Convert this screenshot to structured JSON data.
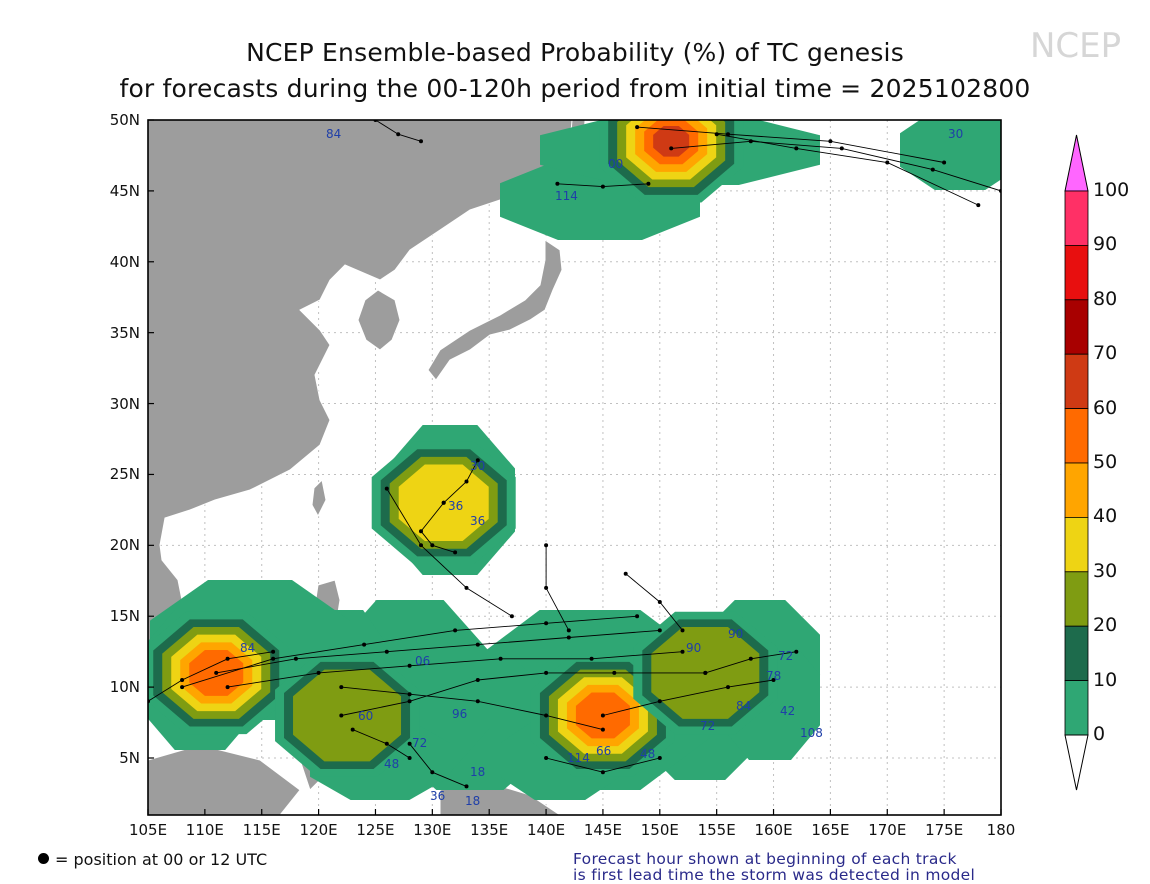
{
  "title": {
    "line1": "NCEP Ensemble-based Probability (%) of TC genesis",
    "line2": "for forecasts during the 00-120h period from initial time = 2025102800"
  },
  "watermark": "NCEP",
  "axes": {
    "lat_labels": [
      "50N",
      "45N",
      "40N",
      "35N",
      "30N",
      "25N",
      "20N",
      "15N",
      "10N",
      "5N"
    ],
    "lon_labels": [
      "105E",
      "110E",
      "115E",
      "120E",
      "125E",
      "130E",
      "135E",
      "140E",
      "145E",
      "150E",
      "155E",
      "160E",
      "165E",
      "170E",
      "175E",
      "180"
    ]
  },
  "colorbar": {
    "labels": [
      "100",
      "90",
      "80",
      "70",
      "60",
      "50",
      "40",
      "30",
      "20",
      "10",
      "0"
    ],
    "colors": [
      "#ff66ff",
      "#ff3066",
      "#e80f0f",
      "#a80000",
      "#cf3a14",
      "#ff6a00",
      "#ffa500",
      "#eed414",
      "#7f9c12",
      "#1d6b4c",
      "#2fa774",
      "#ffffff"
    ]
  },
  "chart_data": {
    "type": "heatmap",
    "title": "NCEP Ensemble-based Probability (%) of TC genesis for forecasts during the 00-120h period from initial time = 2025102800",
    "xlim": [
      105,
      180
    ],
    "ylim": [
      1,
      50
    ],
    "levels": [
      0,
      10,
      20,
      30,
      40,
      50,
      60,
      70,
      80,
      90,
      100
    ],
    "genesis_regions": [
      {
        "lon": 111,
        "lat": 11,
        "max_prob": 60
      },
      {
        "lon": 131,
        "lat": 23,
        "max_prob": 40
      },
      {
        "lon": 122.5,
        "lat": 8,
        "max_prob": 30
      },
      {
        "lon": 145,
        "lat": 8,
        "max_prob": 60
      },
      {
        "lon": 154,
        "lat": 11,
        "max_prob": 30
      },
      {
        "lon": 151,
        "lat": 48.5,
        "max_prob": 70
      }
    ],
    "track_start_hour_labels": [
      "84",
      "114",
      "00",
      "30",
      "36",
      "36",
      "30",
      "84",
      "06",
      "96",
      "90",
      "90",
      "72",
      "78",
      "42",
      "108",
      "84",
      "72",
      "66",
      "114",
      "48",
      "18",
      "18",
      "36",
      "48",
      "72",
      "60"
    ]
  },
  "footer": {
    "left": "= position at 00 or 12 UTC",
    "right_line1": "Forecast hour shown at beginning of each track",
    "right_line2": "is first lead time the storm was detected in model"
  }
}
